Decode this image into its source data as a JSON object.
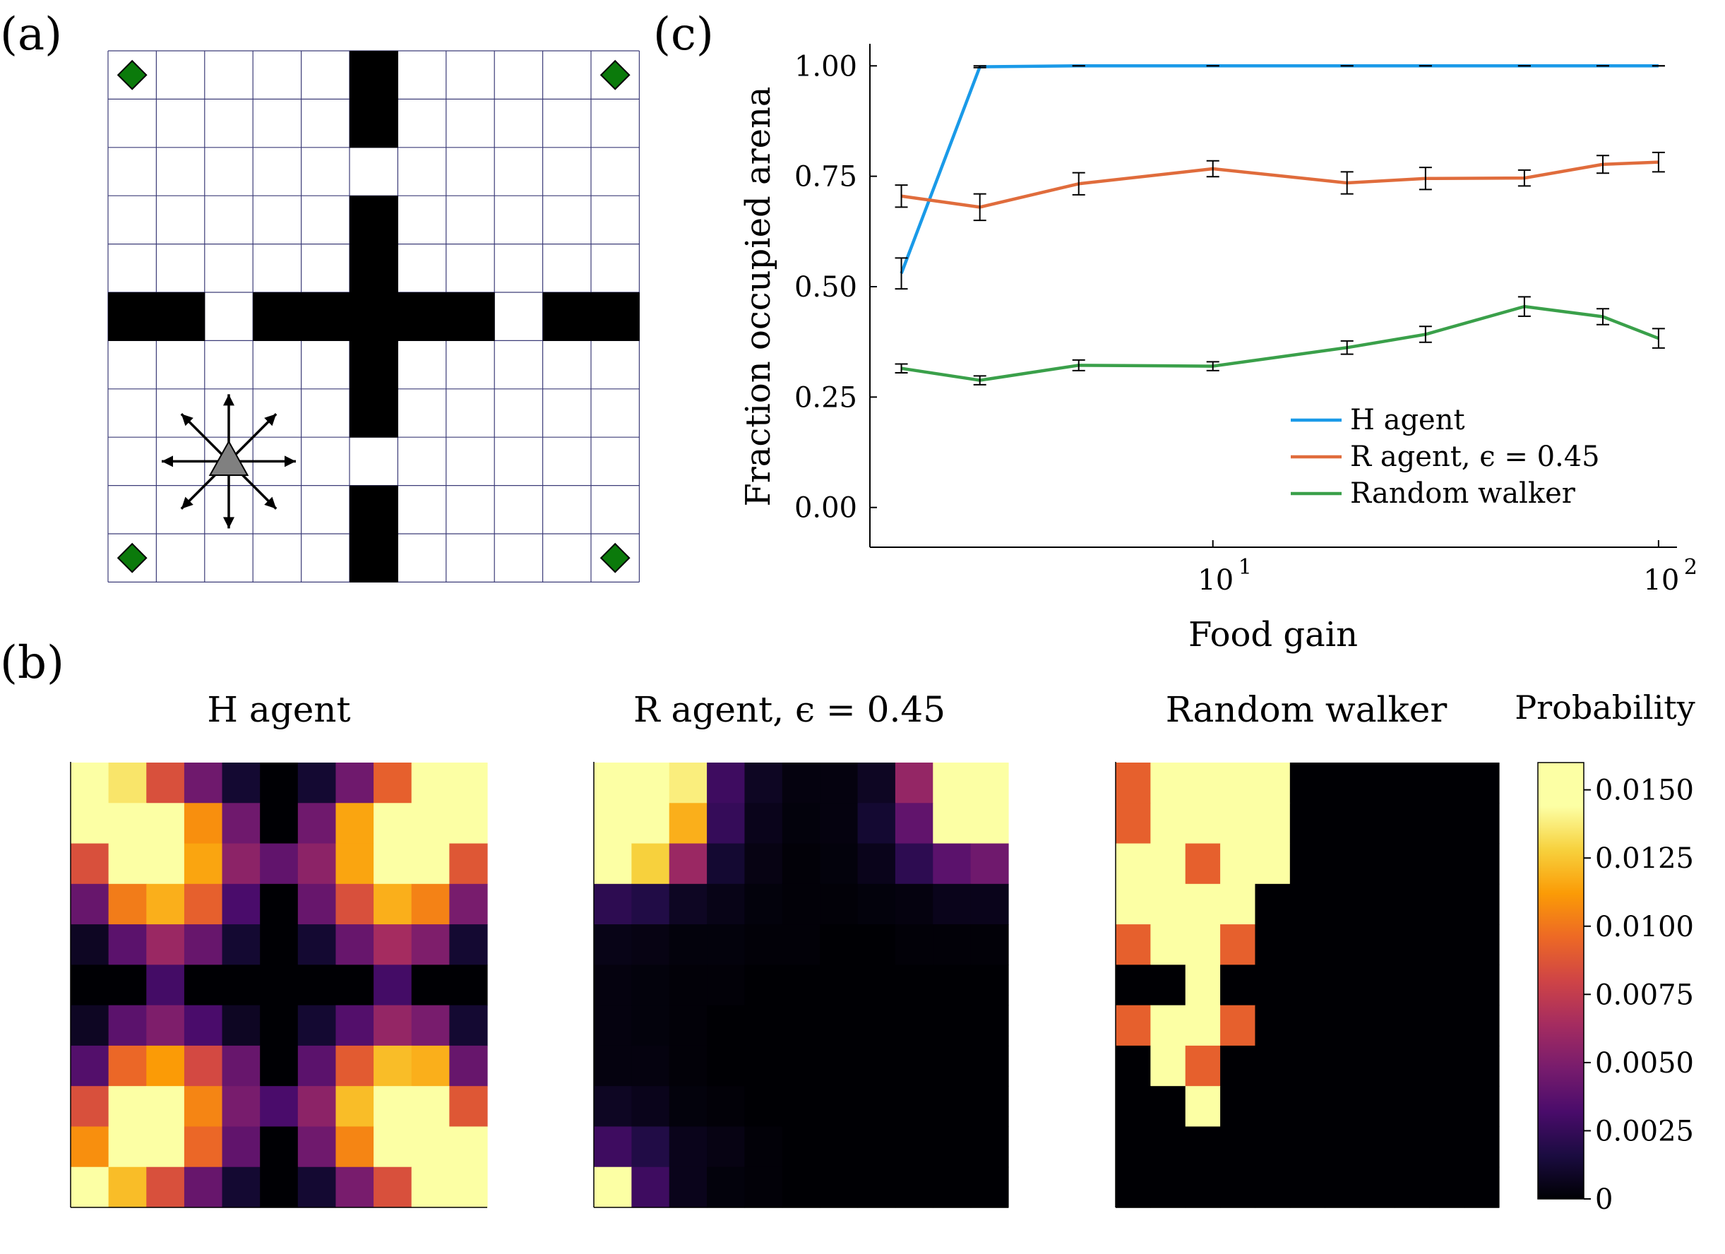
{
  "panel_labels": {
    "a": "(a)",
    "b": "(b)",
    "c": "(c)"
  },
  "arena": {
    "rows": 11,
    "cols": 11,
    "walls": [
      [
        0,
        5
      ],
      [
        1,
        5
      ],
      [
        3,
        5
      ],
      [
        4,
        5
      ],
      [
        5,
        0
      ],
      [
        5,
        1
      ],
      [
        5,
        3
      ],
      [
        5,
        4
      ],
      [
        5,
        5
      ],
      [
        5,
        6
      ],
      [
        5,
        7
      ],
      [
        5,
        9
      ],
      [
        5,
        10
      ],
      [
        6,
        5
      ],
      [
        7,
        5
      ],
      [
        9,
        5
      ],
      [
        10,
        5
      ]
    ],
    "food": [
      [
        0,
        0
      ],
      [
        0,
        10
      ],
      [
        10,
        0
      ],
      [
        10,
        10
      ]
    ],
    "agent": [
      8,
      2
    ],
    "food_color": "#0b7a0b",
    "agent_color": "#808080",
    "grid_color": "#3c3c78"
  },
  "chart_data": [
    {
      "type": "line",
      "title": "",
      "xlabel": "Food gain",
      "ylabel": "Fraction occupied arena",
      "xscale": "log",
      "xlim": [
        1.7,
        110
      ],
      "ylim": [
        -0.09,
        1.05
      ],
      "yticks": [
        0.0,
        0.25,
        0.5,
        0.75,
        1.0
      ],
      "ytick_labels": [
        "0.00",
        "0.25",
        "0.50",
        "0.75",
        "1.00"
      ],
      "xticks": [
        10,
        100
      ],
      "xtick_labels": [
        {
          "base": "10",
          "exp": "1"
        },
        {
          "base": "10",
          "exp": "2"
        }
      ],
      "x": [
        2,
        3,
        5,
        10,
        20,
        30,
        50,
        75,
        100
      ],
      "series": [
        {
          "name": "H agent",
          "color": "#1a9ae8",
          "values": [
            0.53,
            0.998,
            1.0,
            1.0,
            1.0,
            1.0,
            1.0,
            1.0,
            1.0
          ],
          "errors": [
            0.035,
            0.002,
            0.0,
            0.0,
            0.0,
            0.0,
            0.0,
            0.0,
            0.0
          ]
        },
        {
          "name": "R agent, ϵ = 0.45",
          "color": "#e06c3c",
          "values": [
            0.705,
            0.68,
            0.733,
            0.767,
            0.735,
            0.745,
            0.746,
            0.777,
            0.782
          ],
          "errors": [
            0.025,
            0.03,
            0.025,
            0.018,
            0.025,
            0.025,
            0.018,
            0.02,
            0.022
          ]
        },
        {
          "name": "Random walker",
          "color": "#3aa04a",
          "values": [
            0.315,
            0.288,
            0.322,
            0.32,
            0.362,
            0.392,
            0.455,
            0.432,
            0.383
          ],
          "errors": [
            0.01,
            0.01,
            0.012,
            0.01,
            0.015,
            0.018,
            0.022,
            0.018,
            0.022
          ]
        }
      ],
      "legend_position": "bottom-right"
    },
    {
      "type": "heatmap",
      "title": "H agent",
      "rows": 11,
      "cols": 11,
      "values": [
        [
          0.015,
          0.0135,
          0.0085,
          0.0045,
          0.0012,
          0,
          0.0012,
          0.0045,
          0.0092,
          0.0148,
          0.016
        ],
        [
          0.0148,
          0.016,
          0.016,
          0.0108,
          0.0045,
          0,
          0.0045,
          0.0115,
          0.016,
          0.016,
          0.0148
        ],
        [
          0.0085,
          0.016,
          0.016,
          0.0115,
          0.0055,
          0.004,
          0.0055,
          0.0115,
          0.016,
          0.016,
          0.0088
        ],
        [
          0.0042,
          0.0102,
          0.0118,
          0.0092,
          0.0032,
          0,
          0.0042,
          0.0085,
          0.0118,
          0.0104,
          0.0048
        ],
        [
          0.0008,
          0.0038,
          0.006,
          0.0042,
          0.0012,
          0,
          0.0012,
          0.0042,
          0.0064,
          0.005,
          0.0012
        ],
        [
          0,
          0,
          0.003,
          0,
          0,
          0,
          0,
          0,
          0.003,
          0,
          0
        ],
        [
          0.0008,
          0.0038,
          0.005,
          0.0032,
          0.0008,
          0,
          0.0012,
          0.0035,
          0.0058,
          0.0048,
          0.0012
        ],
        [
          0.0035,
          0.0095,
          0.0112,
          0.0082,
          0.0042,
          0,
          0.0038,
          0.009,
          0.0122,
          0.0118,
          0.0042
        ],
        [
          0.0085,
          0.0148,
          0.016,
          0.0105,
          0.0048,
          0.0032,
          0.0055,
          0.0122,
          0.016,
          0.016,
          0.0088
        ],
        [
          0.0108,
          0.016,
          0.016,
          0.0095,
          0.004,
          0,
          0.0045,
          0.0105,
          0.016,
          0.016,
          0.0148
        ],
        [
          0.016,
          0.0122,
          0.0085,
          0.0042,
          0.0012,
          0,
          0.0012,
          0.0048,
          0.0085,
          0.0148,
          0.016
        ]
      ]
    },
    {
      "type": "heatmap",
      "title": "R agent, ϵ = 0.45",
      "rows": 11,
      "cols": 11,
      "values": [
        [
          0.016,
          0.016,
          0.0138,
          0.0028,
          0.0008,
          0.0003,
          0.0003,
          0.0008,
          0.0058,
          0.016,
          0.016
        ],
        [
          0.016,
          0.016,
          0.0118,
          0.0025,
          0.0006,
          0.0002,
          0.0003,
          0.0012,
          0.004,
          0.016,
          0.016
        ],
        [
          0.016,
          0.0128,
          0.006,
          0.0012,
          0.0004,
          0.0001,
          0.0002,
          0.0006,
          0.0022,
          0.0038,
          0.0045
        ],
        [
          0.0022,
          0.0018,
          0.0008,
          0.0005,
          0.0002,
          0.0001,
          0.0001,
          0.0002,
          0.0003,
          0.0006,
          0.0006
        ],
        [
          0.0005,
          0.0004,
          0.0002,
          0.0002,
          0.0001,
          0.0001,
          0,
          0,
          0.0001,
          0.0001,
          0.0001
        ],
        [
          0.0003,
          0.0002,
          0.0001,
          0.0001,
          0,
          0,
          0,
          0,
          0,
          0,
          0
        ],
        [
          0.0003,
          0.0002,
          0.0001,
          0,
          0,
          0,
          0,
          0,
          0,
          0,
          0
        ],
        [
          0.0003,
          0.0003,
          0.0001,
          0,
          0,
          0,
          0,
          0,
          0,
          0,
          0
        ],
        [
          0.0008,
          0.0006,
          0.0002,
          0.0001,
          0,
          0,
          0,
          0,
          0,
          0,
          0
        ],
        [
          0.0028,
          0.0018,
          0.0006,
          0.0004,
          0.0001,
          0,
          0,
          0,
          0,
          0,
          0
        ],
        [
          0.0148,
          0.0028,
          0.0006,
          0.0002,
          0.0001,
          0,
          0,
          0,
          0,
          0,
          0
        ]
      ]
    },
    {
      "type": "heatmap",
      "title": "Random walker",
      "rows": 11,
      "cols": 11,
      "values": [
        [
          0.0092,
          0.016,
          0.016,
          0.016,
          0.016,
          0,
          0,
          0,
          0,
          0,
          0
        ],
        [
          0.0092,
          0.016,
          0.016,
          0.016,
          0.016,
          0,
          0,
          0,
          0,
          0,
          0
        ],
        [
          0.016,
          0.016,
          0.0092,
          0.016,
          0.016,
          0,
          0,
          0,
          0,
          0,
          0
        ],
        [
          0.016,
          0.016,
          0.016,
          0.016,
          0,
          0,
          0,
          0,
          0,
          0,
          0
        ],
        [
          0.0092,
          0.016,
          0.016,
          0.0092,
          0,
          0,
          0,
          0,
          0,
          0,
          0
        ],
        [
          0,
          0,
          0.016,
          0,
          0,
          0,
          0,
          0,
          0,
          0,
          0
        ],
        [
          0.0092,
          0.016,
          0.016,
          0.0092,
          0,
          0,
          0,
          0,
          0,
          0,
          0
        ],
        [
          0,
          0.016,
          0.0092,
          0,
          0,
          0,
          0,
          0,
          0,
          0,
          0
        ],
        [
          0,
          0,
          0.016,
          0,
          0,
          0,
          0,
          0,
          0,
          0,
          0
        ],
        [
          0,
          0,
          0,
          0,
          0,
          0,
          0,
          0,
          0,
          0,
          0
        ],
        [
          0,
          0,
          0,
          0,
          0,
          0,
          0,
          0,
          0,
          0,
          0
        ]
      ]
    },
    {
      "type": "colorbar",
      "title": "Probability",
      "colormap": "inferno",
      "range": [
        0,
        0.016
      ],
      "ticks": [
        0,
        0.0025,
        0.005,
        0.0075,
        0.01,
        0.0125,
        0.015
      ],
      "tick_labels": [
        "0",
        "0.0025",
        "0.0050",
        "0.0075",
        "0.0100",
        "0.0125",
        "0.0150"
      ]
    }
  ]
}
